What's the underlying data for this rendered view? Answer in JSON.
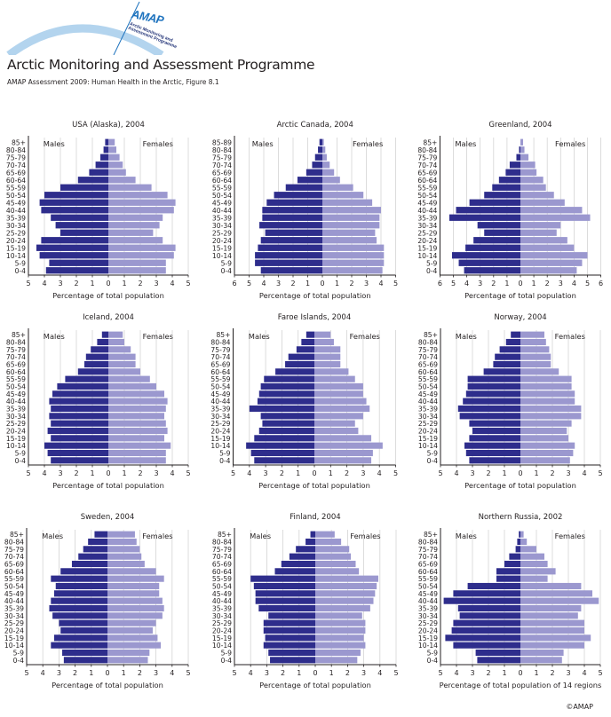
{
  "header": {
    "logo_text": "AMAP",
    "logo_subtext": [
      "Arctic Monitoring and",
      "Assessment Programme"
    ],
    "title": "Arctic Monitoring and Assessment Programme",
    "subtitle": "AMAP Assessment 2009: Human Health in the Arctic, Figure 8.1"
  },
  "footer": {
    "copyright": "©AMAP"
  },
  "colors": {
    "males": "#2e2d8c",
    "females": "#9b98cf",
    "grid": "#d4d4d4",
    "axis": "#231f20",
    "logo_arc": "#b3d4ee",
    "logo_text": "#1e73be"
  },
  "chart_data": [
    {
      "type": "bar",
      "title": "USA (Alaska), 2004",
      "xlabel": "Percentage of total population",
      "legend": [
        "Males",
        "Females"
      ],
      "categories": [
        "85+",
        "80-84",
        "75-79",
        "70-74",
        "65-69",
        "60-64",
        "55-59",
        "50-54",
        "45-49",
        "40-44",
        "35-39",
        "30-34",
        "25-29",
        "20-24",
        "15-19",
        "10-14",
        "5-9",
        "0-4"
      ],
      "series": [
        {
          "name": "Males",
          "values": [
            0.2,
            0.3,
            0.5,
            0.8,
            1.2,
            1.9,
            3.0,
            4.0,
            4.3,
            4.2,
            3.6,
            3.3,
            3.0,
            4.2,
            4.5,
            4.3,
            3.7,
            3.9
          ]
        },
        {
          "name": "Females",
          "values": [
            0.4,
            0.5,
            0.7,
            0.9,
            1.1,
            1.7,
            2.7,
            3.7,
            4.2,
            4.1,
            3.4,
            3.2,
            2.8,
            3.4,
            4.2,
            4.1,
            3.6,
            3.6
          ]
        }
      ],
      "xlim_left": 5,
      "xlim_right": 5,
      "xticks_left": [
        5,
        4,
        3,
        2,
        1,
        0
      ],
      "xticks_right": [
        1,
        2,
        3,
        4,
        5
      ],
      "grid": true
    },
    {
      "type": "bar",
      "title": "Arctic Canada, 2004",
      "xlabel": "Percentage of total population",
      "legend": [
        "Males",
        "Females"
      ],
      "categories": [
        "85-89",
        "80-84",
        "75-79",
        "70-74",
        "65-69",
        "60-64",
        "55-59",
        "50-54",
        "45-49",
        "40-44",
        "35-39",
        "30-34",
        "25-29",
        "20-24",
        "15-19",
        "10-14",
        "5-9",
        "0-4"
      ],
      "series": [
        {
          "name": "Males",
          "values": [
            0.2,
            0.3,
            0.5,
            0.7,
            1.1,
            1.7,
            2.5,
            3.3,
            3.8,
            4.1,
            4.1,
            4.3,
            3.9,
            4.2,
            4.4,
            4.6,
            4.6,
            4.2
          ]
        },
        {
          "name": "Females",
          "values": [
            0.1,
            0.2,
            0.3,
            0.5,
            0.8,
            1.2,
            2.1,
            2.8,
            3.4,
            4.0,
            3.9,
            3.9,
            3.6,
            3.7,
            4.2,
            4.2,
            4.2,
            4.1
          ]
        }
      ],
      "xlim_left": 6,
      "xlim_right": 5,
      "xticks_left": [
        6,
        5,
        4,
        3,
        2,
        1,
        0
      ],
      "xticks_right": [
        1,
        2,
        3,
        4,
        5
      ],
      "grid": true
    },
    {
      "type": "bar",
      "title": "Greenland, 2004",
      "xlabel": "Percentage of total population",
      "legend": [
        "Males",
        "Females"
      ],
      "categories": [
        "85+",
        "80-84",
        "75-79",
        "70-74",
        "65-69",
        "60-64",
        "55-59",
        "50-54",
        "45-49",
        "40-44",
        "35-39",
        "30-34",
        "25-29",
        "20-24",
        "15-19",
        "10-14",
        "5-9",
        "0-4"
      ],
      "series": [
        {
          "name": "Males",
          "values": [
            0.0,
            0.1,
            0.3,
            0.8,
            1.1,
            1.6,
            2.1,
            2.7,
            3.8,
            4.8,
            5.3,
            3.2,
            2.7,
            3.5,
            4.1,
            5.1,
            4.6,
            4.2
          ]
        },
        {
          "name": "Females",
          "values": [
            0.2,
            0.3,
            0.6,
            1.1,
            1.2,
            1.7,
            1.9,
            2.5,
            3.3,
            4.6,
            5.2,
            3.0,
            2.7,
            3.5,
            4.0,
            5.0,
            4.6,
            4.2
          ]
        }
      ],
      "xlim_left": 6,
      "xlim_right": 6,
      "xticks_left": [
        6,
        5,
        4,
        3,
        2,
        1,
        0
      ],
      "xticks_right": [
        1,
        2,
        3,
        4,
        5,
        6
      ],
      "grid": true
    },
    {
      "type": "bar",
      "title": "Iceland, 2004",
      "xlabel": "Percentage of total population",
      "legend": [
        "Males",
        "Females"
      ],
      "categories": [
        "85+",
        "80-84",
        "75-79",
        "70-74",
        "65-69",
        "60-64",
        "55-59",
        "50-54",
        "45-49",
        "40-44",
        "35-39",
        "30-34",
        "25-29",
        "20-24",
        "15-19",
        "10-14",
        "5-9",
        "0-4"
      ],
      "series": [
        {
          "name": "Males",
          "values": [
            0.4,
            0.7,
            1.1,
            1.4,
            1.5,
            1.9,
            2.7,
            3.2,
            3.5,
            3.7,
            3.6,
            3.7,
            3.6,
            3.8,
            3.6,
            4.0,
            3.8,
            3.6
          ]
        },
        {
          "name": "Females",
          "values": [
            0.9,
            1.0,
            1.4,
            1.7,
            1.7,
            2.0,
            2.6,
            3.0,
            3.5,
            3.7,
            3.6,
            3.5,
            3.6,
            3.7,
            3.5,
            3.9,
            3.6,
            3.6
          ]
        }
      ],
      "xlim_left": 5,
      "xlim_right": 5,
      "xticks_left": [
        5,
        4,
        3,
        2,
        1,
        0
      ],
      "xticks_right": [
        1,
        2,
        3,
        4,
        5
      ],
      "grid": true
    },
    {
      "type": "bar",
      "title": "Faroe Islands, 2004",
      "xlabel": "Percentage of total population",
      "legend": [
        "Males",
        "Females"
      ],
      "categories": [
        "85+",
        "80-84",
        "75-79",
        "70-74",
        "65-69",
        "60-64",
        "55-59",
        "50-54",
        "45-49",
        "40-44",
        "35-39",
        "30-34",
        "25-29",
        "20-24",
        "15-19",
        "10-14",
        "5-9",
        "0-4"
      ],
      "series": [
        {
          "name": "Males",
          "values": [
            0.5,
            0.8,
            1.1,
            1.6,
            1.8,
            2.4,
            3.1,
            3.3,
            3.4,
            3.5,
            4.0,
            3.3,
            3.2,
            3.4,
            3.7,
            4.2,
            3.9,
            3.7
          ]
        },
        {
          "name": "Females",
          "values": [
            1.0,
            1.2,
            1.6,
            1.6,
            1.6,
            2.1,
            2.5,
            3.0,
            3.0,
            3.2,
            3.4,
            3.0,
            2.5,
            2.7,
            3.5,
            4.2,
            3.6,
            3.5
          ]
        }
      ],
      "xlim_left": 5,
      "xlim_right": 5,
      "xticks_left": [
        5,
        4,
        3,
        2,
        1,
        0
      ],
      "xticks_right": [
        1,
        2,
        3,
        4,
        5
      ],
      "grid": true
    },
    {
      "type": "bar",
      "title": "Norway, 2004",
      "xlabel": "Percentage of total population",
      "legend": [
        "Males",
        "Females"
      ],
      "categories": [
        "85+",
        "80-84",
        "75-79",
        "70-74",
        "65-69",
        "60-64",
        "55-59",
        "50-54",
        "45-49",
        "40-44",
        "35-39",
        "30-34",
        "25-29",
        "20-24",
        "15-19",
        "10-14",
        "5-9",
        "0-4"
      ],
      "series": [
        {
          "name": "Males",
          "values": [
            0.6,
            0.9,
            1.3,
            1.6,
            1.7,
            2.3,
            3.3,
            3.3,
            3.4,
            3.6,
            3.9,
            3.8,
            3.2,
            3.0,
            3.2,
            3.5,
            3.4,
            3.2
          ]
        },
        {
          "name": "Females",
          "values": [
            1.5,
            1.6,
            1.8,
            1.9,
            1.9,
            2.4,
            3.2,
            3.2,
            3.4,
            3.4,
            3.8,
            3.8,
            3.2,
            2.9,
            3.0,
            3.4,
            3.3,
            3.1
          ]
        }
      ],
      "xlim_left": 5,
      "xlim_right": 5,
      "xticks_left": [
        5,
        4,
        3,
        2,
        1,
        0
      ],
      "xticks_right": [
        1,
        2,
        3,
        4,
        5
      ],
      "grid": true
    },
    {
      "type": "bar",
      "title": "Sweden, 2004",
      "xlabel": "Percentage of total population",
      "legend": [
        "Males",
        "Females"
      ],
      "categories": [
        "85+",
        "80-84",
        "75-79",
        "70-74",
        "65-69",
        "60-64",
        "55-59",
        "50-54",
        "45-49",
        "40-44",
        "35-39",
        "30-34",
        "25-29",
        "20-24",
        "15-19",
        "10-14",
        "5-9",
        "0-4"
      ],
      "series": [
        {
          "name": "Males",
          "values": [
            0.8,
            1.2,
            1.5,
            1.8,
            2.2,
            2.9,
            3.5,
            3.2,
            3.3,
            3.5,
            3.6,
            3.4,
            3.0,
            2.9,
            3.3,
            3.5,
            2.8,
            2.7
          ]
        },
        {
          "name": "Females",
          "values": [
            1.7,
            1.8,
            2.0,
            2.1,
            2.3,
            3.0,
            3.5,
            3.2,
            3.2,
            3.4,
            3.5,
            3.4,
            3.0,
            2.8,
            3.1,
            3.3,
            2.6,
            2.5
          ]
        }
      ],
      "xlim_left": 5,
      "xlim_right": 5,
      "xticks_left": [
        5,
        4,
        3,
        2,
        1,
        0
      ],
      "xticks_right": [
        1,
        2,
        3,
        4,
        5
      ],
      "grid": true
    },
    {
      "type": "bar",
      "title": "Finland, 2004",
      "xlabel": "Percentage of total population",
      "legend": [
        "Males",
        "Females"
      ],
      "categories": [
        "85+",
        "80-84",
        "75-79",
        "70-74",
        "65-69",
        "60-64",
        "55-59",
        "50-54",
        "45-49",
        "40-44",
        "35-39",
        "30-34",
        "25-29",
        "20-24",
        "15-19",
        "10-14",
        "5-9",
        "0-4"
      ],
      "series": [
        {
          "name": "Males",
          "values": [
            0.3,
            0.6,
            1.2,
            1.6,
            2.1,
            2.5,
            4.0,
            3.8,
            3.7,
            3.7,
            3.5,
            2.9,
            3.2,
            3.2,
            3.1,
            3.2,
            2.9,
            2.8
          ]
        },
        {
          "name": "Females",
          "values": [
            1.2,
            1.6,
            2.1,
            2.2,
            2.5,
            2.7,
            3.9,
            3.8,
            3.7,
            3.6,
            3.4,
            2.9,
            3.1,
            3.1,
            3.0,
            3.1,
            2.8,
            2.6
          ]
        }
      ],
      "xlim_left": 5,
      "xlim_right": 5,
      "xticks_left": [
        5,
        4,
        3,
        2,
        1,
        0
      ],
      "xticks_right": [
        1,
        2,
        3,
        4,
        5
      ],
      "grid": true
    },
    {
      "type": "bar",
      "title": "Northern Russia, 2002",
      "xlabel": "Percentage of total population of 14 regions",
      "legend": [
        "Males",
        "Females"
      ],
      "categories": [
        "85+",
        "80-84",
        "75-79",
        "70-74",
        "65-69",
        "60-64",
        "55-59",
        "50-54",
        "45-49",
        "40-44",
        "35-39",
        "30-34",
        "25-29",
        "20-24",
        "15-19",
        "10-14",
        "5-9",
        "0-4"
      ],
      "series": [
        {
          "name": "Males",
          "values": [
            0.1,
            0.2,
            0.3,
            0.7,
            1.0,
            1.5,
            1.5,
            3.3,
            4.2,
            4.8,
            3.9,
            3.8,
            4.2,
            4.3,
            4.7,
            4.2,
            2.8,
            2.7
          ]
        },
        {
          "name": "Females",
          "values": [
            0.2,
            0.4,
            1.0,
            1.5,
            1.7,
            2.2,
            1.7,
            3.8,
            4.5,
            4.9,
            3.8,
            3.6,
            4.0,
            4.0,
            4.4,
            4.0,
            2.7,
            2.6
          ]
        }
      ],
      "xlim_left": 5,
      "xlim_right": 5,
      "xticks_left": [
        5,
        4,
        3,
        2,
        1,
        0
      ],
      "xticks_right": [
        1,
        2,
        3,
        4,
        5
      ],
      "grid": true
    }
  ]
}
